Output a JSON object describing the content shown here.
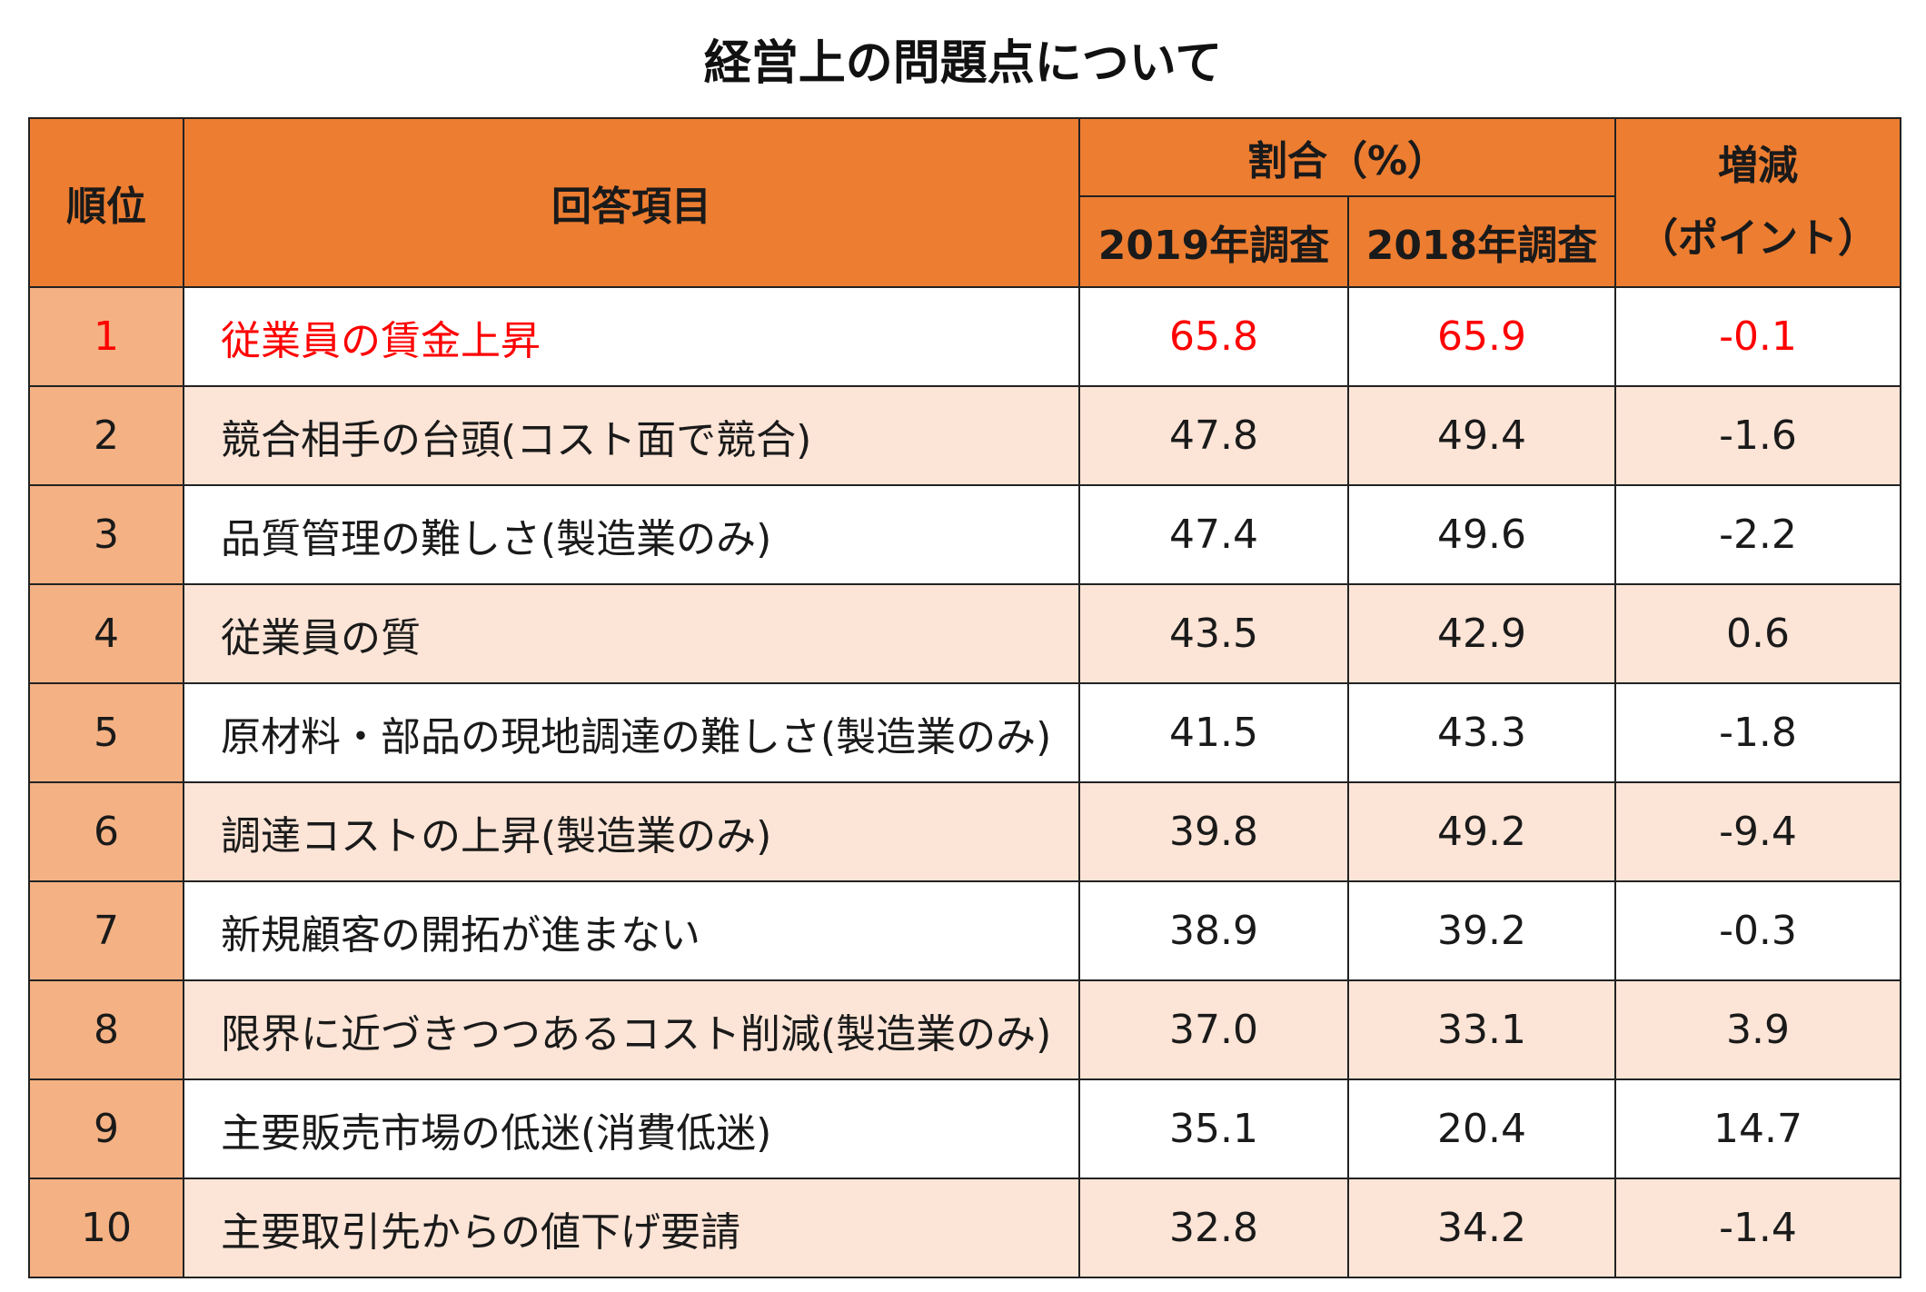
{
  "title": "経営上の問題点について",
  "colors": {
    "header_bg": "#ed7d31",
    "rank_bg": "#f4b183",
    "stripe_bg": "#fce4d6",
    "highlight_text": "#ff0000"
  },
  "chart_data": {
    "type": "table",
    "title": "経営上の問題点について",
    "headers": {
      "rank": "順位",
      "item": "回答項目",
      "ratio_group": "割合（%）",
      "year_2019": "2019年調査",
      "year_2018": "2018年調査",
      "change_line1": "増減",
      "change_line2": "（ポイント）"
    },
    "rows": [
      {
        "rank": "1",
        "item": "従業員の賃金上昇",
        "v2019": "65.8",
        "v2018": "65.9",
        "change": "-0.1",
        "highlight": true
      },
      {
        "rank": "2",
        "item": "競合相手の台頭(コスト面で競合)",
        "v2019": "47.8",
        "v2018": "49.4",
        "change": "-1.6"
      },
      {
        "rank": "3",
        "item": "品質管理の難しさ(製造業のみ)",
        "v2019": "47.4",
        "v2018": "49.6",
        "change": "-2.2"
      },
      {
        "rank": "4",
        "item": "従業員の質",
        "v2019": "43.5",
        "v2018": "42.9",
        "change": "0.6"
      },
      {
        "rank": "5",
        "item": "原材料・部品の現地調達の難しさ(製造業のみ)",
        "v2019": "41.5",
        "v2018": "43.3",
        "change": "-1.8"
      },
      {
        "rank": "6",
        "item": "調達コストの上昇(製造業のみ)",
        "v2019": "39.8",
        "v2018": "49.2",
        "change": "-9.4"
      },
      {
        "rank": "7",
        "item": "新規顧客の開拓が進まない",
        "v2019": "38.9",
        "v2018": "39.2",
        "change": "-0.3"
      },
      {
        "rank": "8",
        "item": "限界に近づきつつあるコスト削減(製造業のみ)",
        "v2019": "37.0",
        "v2018": "33.1",
        "change": "3.9"
      },
      {
        "rank": "9",
        "item": "主要販売市場の低迷(消費低迷)",
        "v2019": "35.1",
        "v2018": "20.4",
        "change": "14.7"
      },
      {
        "rank": "10",
        "item": "主要取引先からの値下げ要請",
        "v2019": "32.8",
        "v2018": "34.2",
        "change": "-1.4"
      }
    ]
  }
}
